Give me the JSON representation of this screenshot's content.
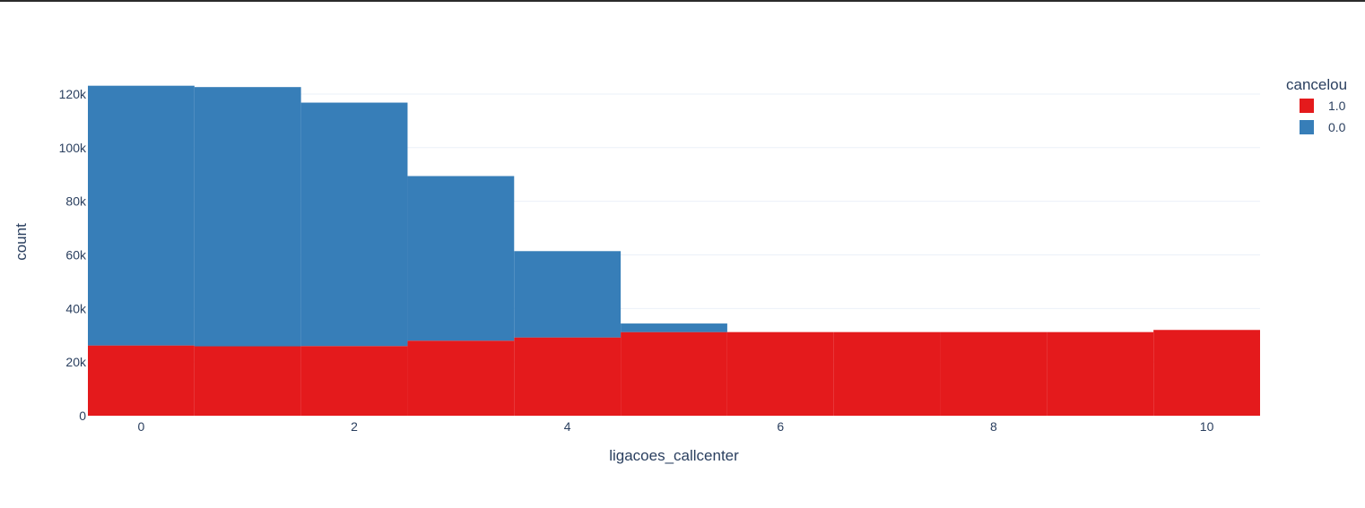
{
  "chart_data": {
    "type": "bar",
    "barmode": "stack",
    "xlabel": "ligacoes_callcenter",
    "ylabel": "count",
    "x": [
      0,
      1,
      2,
      3,
      4,
      5,
      6,
      7,
      8,
      9,
      10
    ],
    "xlim": [
      -0.5,
      10.5
    ],
    "ylim": [
      0,
      125000
    ],
    "x_ticks": [
      0,
      2,
      4,
      6,
      8,
      10
    ],
    "x_tick_labels": [
      "0",
      "2",
      "4",
      "6",
      "8",
      "10"
    ],
    "y_ticks": [
      0,
      20000,
      40000,
      60000,
      80000,
      100000,
      120000
    ],
    "y_tick_labels": [
      "0",
      "20k",
      "40k",
      "60k",
      "80k",
      "100k",
      "120k"
    ],
    "grid": true,
    "legend": {
      "title": "cancelou",
      "placement": "top-right"
    },
    "series": [
      {
        "name": "1.0",
        "color": "#e41a1c",
        "values": [
          26200,
          25900,
          26000,
          28000,
          29200,
          31200,
          31200,
          31200,
          31200,
          31200,
          32000
        ]
      },
      {
        "name": "0.0",
        "color": "#377eb8",
        "values": [
          96900,
          96700,
          90800,
          61400,
          32200,
          3200,
          0,
          0,
          0,
          0,
          0
        ]
      }
    ]
  }
}
